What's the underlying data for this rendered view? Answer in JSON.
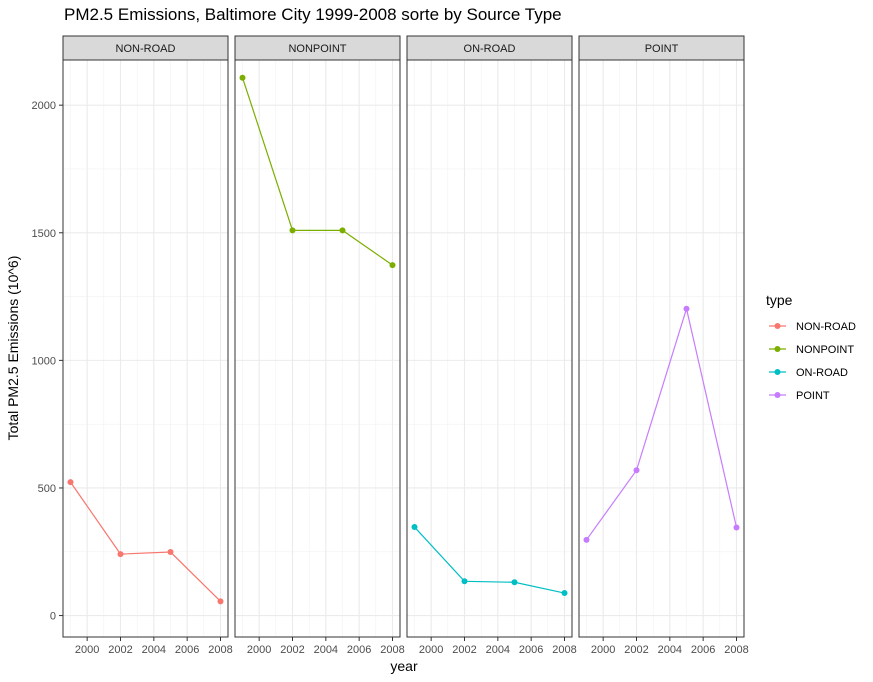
{
  "chart_data": {
    "type": "line",
    "title": "PM2.5 Emissions, Baltimore City 1999-2008 sorte by Source Type",
    "xlabel": "year",
    "ylabel": "Total PM2.5 Emissions (10^6)",
    "facet_by": "type",
    "xlim": [
      1999,
      2008
    ],
    "ylim": [
      0,
      2200
    ],
    "x_ticks": [
      2000,
      2002,
      2004,
      2006,
      2008
    ],
    "x_tick_labels": [
      "2000",
      "2002",
      "2004",
      "2006",
      "2008"
    ],
    "y_ticks": [
      0,
      500,
      1000,
      1500,
      2000
    ],
    "y_tick_labels": [
      "0",
      "500",
      "1000",
      "1500",
      "2000"
    ],
    "x": [
      1999,
      2002,
      2005,
      2008
    ],
    "series": [
      {
        "name": "NON-ROAD",
        "color": "#F8766D",
        "values": [
          522.94,
          240.85,
          248.93,
          55.82
        ]
      },
      {
        "name": "NONPOINT",
        "color": "#7CAE00",
        "values": [
          2107.63,
          1509.5,
          1509.5,
          1373.21
        ]
      },
      {
        "name": "ON-ROAD",
        "color": "#00BFC4",
        "values": [
          346.82,
          134.31,
          130.43,
          88.28
        ]
      },
      {
        "name": "POINT",
        "color": "#C77CFF",
        "values": [
          296.8,
          569.26,
          1202.49,
          344.98
        ]
      }
    ],
    "legend": {
      "title": "type",
      "position": "right"
    },
    "grid": true
  }
}
